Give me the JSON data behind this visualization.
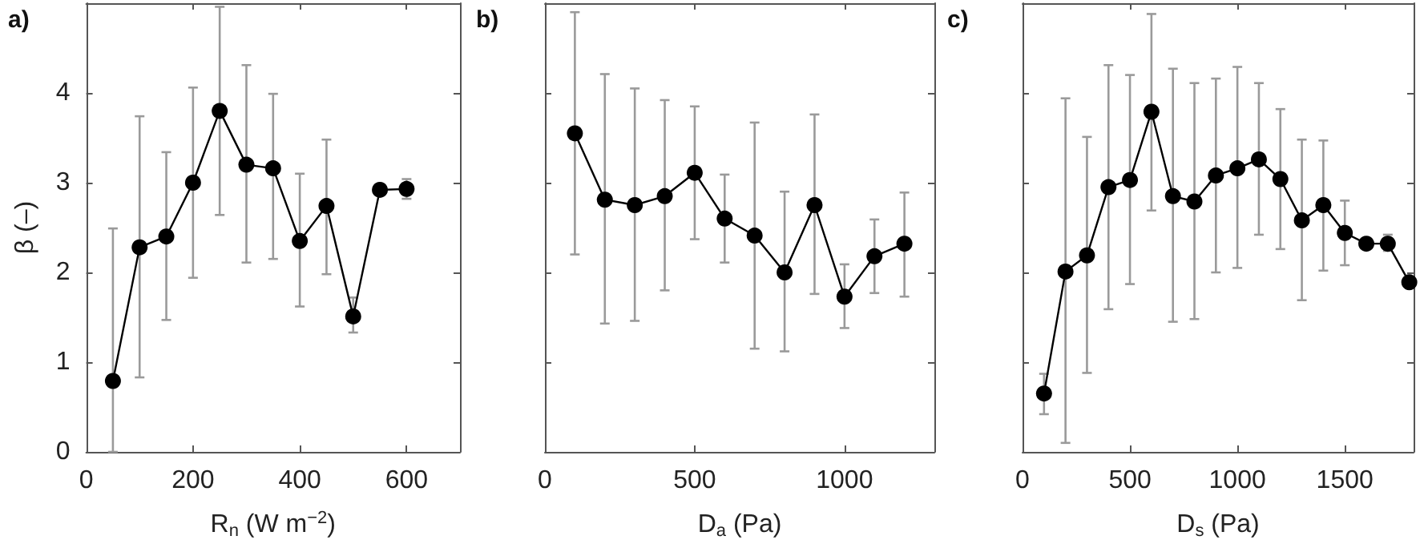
{
  "chart_data": [
    {
      "type": "line",
      "title": "a)",
      "xlabel": "R$_{n}$ (W m$^{−2}$)",
      "ylabel": "β (–)",
      "x": [
        50,
        100,
        150,
        200,
        250,
        300,
        350,
        400,
        450,
        500,
        550,
        600
      ],
      "xlim": [
        0,
        700
      ],
      "xticks": [
        0,
        200,
        400,
        600
      ],
      "ylim": [
        0,
        5
      ],
      "yticks": [
        0,
        1,
        2,
        3,
        4
      ],
      "grid": false,
      "marker": "circle",
      "line_style": "solid",
      "series": [
        {
          "color": "#000000",
          "values": [
            0.79,
            2.28,
            2.4,
            3.0,
            3.8,
            3.2,
            3.16,
            2.35,
            2.74,
            1.51,
            2.92,
            2.93
          ],
          "errors": [
            [
              0,
              2.49
            ],
            [
              0.83,
              3.74
            ],
            [
              1.47,
              3.34
            ],
            [
              1.94,
              4.06
            ],
            [
              2.64,
              4.96
            ],
            [
              2.11,
              4.31
            ],
            [
              2.15,
              3.99
            ],
            [
              1.62,
              3.1
            ],
            [
              1.98,
              3.48
            ],
            [
              1.33,
              1.72
            ],
            null,
            [
              2.82,
              3.04
            ]
          ]
        }
      ]
    },
    {
      "type": "line",
      "title": "b)",
      "xlabel": "D$_{a}$ (Pa)",
      "x": [
        100,
        200,
        300,
        400,
        500,
        600,
        700,
        800,
        900,
        1000,
        1100,
        1200
      ],
      "xlim": [
        0,
        1300
      ],
      "xticks": [
        0,
        500,
        1000
      ],
      "ylim": [
        0,
        5
      ],
      "yticks": [
        0,
        1,
        2,
        3,
        4
      ],
      "tick_labels": "x",
      "grid": false,
      "marker": "circle",
      "line_style": "solid",
      "series": [
        {
          "color": "#000000",
          "values": [
            3.55,
            2.81,
            2.75,
            2.85,
            3.11,
            2.6,
            2.41,
            2.0,
            2.75,
            1.73,
            2.18,
            2.32
          ],
          "errors": [
            [
              2.2,
              4.9
            ],
            [
              1.43,
              4.21
            ],
            [
              1.46,
              4.05
            ],
            [
              1.8,
              3.92
            ],
            [
              2.37,
              3.85
            ],
            [
              2.11,
              3.09
            ],
            [
              1.15,
              3.67
            ],
            [
              1.12,
              2.9
            ],
            [
              1.76,
              3.76
            ],
            [
              1.38,
              2.09
            ],
            [
              1.77,
              2.59
            ],
            [
              1.73,
              2.89
            ]
          ]
        }
      ]
    },
    {
      "type": "line",
      "title": "c)",
      "xlabel": "D$_{s}$ (Pa)",
      "x": [
        100,
        200,
        300,
        400,
        500,
        600,
        700,
        800,
        900,
        1000,
        1100,
        1200,
        1300,
        1400,
        1500,
        1600,
        1700,
        1800
      ],
      "xlim": [
        0,
        1820
      ],
      "xticks": [
        0,
        500,
        1000,
        1500
      ],
      "ylim": [
        0,
        5
      ],
      "yticks": [
        0,
        1,
        2,
        3,
        4
      ],
      "tick_labels": "x",
      "grid": false,
      "marker": "circle",
      "line_style": "solid",
      "series": [
        {
          "color": "#000000",
          "values": [
            0.65,
            2.01,
            2.19,
            2.95,
            3.03,
            3.79,
            2.85,
            2.79,
            3.08,
            3.16,
            3.26,
            3.04,
            2.58,
            2.75,
            2.44,
            2.32,
            2.32,
            1.89
          ],
          "errors": [
            [
              0.42,
              0.87
            ],
            [
              0.1,
              3.94
            ],
            [
              0.88,
              3.51
            ],
            [
              1.59,
              4.31
            ],
            [
              1.87,
              4.2
            ],
            [
              2.69,
              4.88
            ],
            [
              1.45,
              4.27
            ],
            [
              1.48,
              4.11
            ],
            [
              2.0,
              4.16
            ],
            [
              2.05,
              4.29
            ],
            [
              2.42,
              4.11
            ],
            [
              2.26,
              3.82
            ],
            [
              1.69,
              3.48
            ],
            [
              2.02,
              3.47
            ],
            [
              2.08,
              2.8
            ],
            null,
            [
              2.24,
              2.42
            ],
            null
          ]
        }
      ]
    }
  ]
}
